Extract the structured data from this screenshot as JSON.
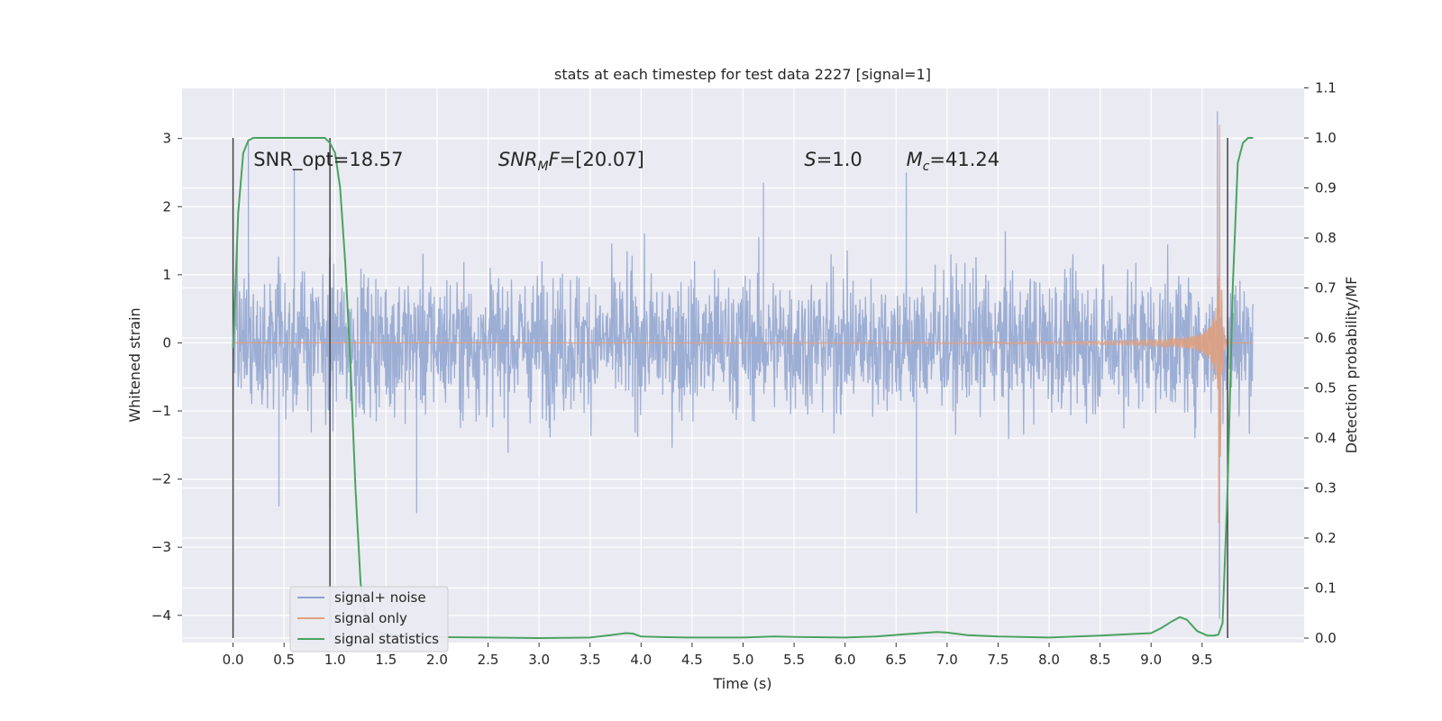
{
  "chart_data": {
    "type": "line",
    "title": "stats at each timestep for test data 2227 [signal=1]",
    "xlabel": "Time (s)",
    "ylabel": "Whitened strain",
    "y2label": "Detection probability/MF",
    "xlim": [
      -0.5,
      10.5
    ],
    "ylim": [
      -4.4,
      3.75
    ],
    "y2lim": [
      -0.0,
      1.11
    ],
    "grid": true,
    "x_ticks": [
      0.0,
      0.5,
      1.0,
      1.5,
      2.0,
      2.5,
      3.0,
      3.5,
      4.0,
      4.5,
      5.0,
      5.5,
      6.0,
      6.5,
      7.0,
      7.5,
      8.0,
      8.5,
      9.0,
      9.5
    ],
    "x_tick_labels": [
      "0.0",
      "0.5",
      "1.0",
      "1.5",
      "2.0",
      "2.5",
      "3.0",
      "3.5",
      "4.0",
      "4.5",
      "5.0",
      "5.5",
      "6.0",
      "6.5",
      "7.0",
      "7.5",
      "8.0",
      "8.5",
      "9.0",
      "9.5"
    ],
    "y_ticks": [
      3,
      2,
      1,
      0,
      -1,
      -2,
      -3,
      -4
    ],
    "y_tick_labels": [
      "3",
      "2",
      "1",
      "0",
      "−1",
      "−2",
      "−3",
      "−4"
    ],
    "y2_ticks": [
      1.1,
      1.0,
      0.9,
      0.8,
      0.7,
      0.6,
      0.5,
      0.4,
      0.3,
      0.2,
      0.1,
      0.0
    ],
    "y2_tick_labels": [
      "1.1",
      "1.0",
      "0.9",
      "0.8",
      "0.7",
      "0.6",
      "0.5",
      "0.4",
      "0.3",
      "0.2",
      "0.1",
      "0.0"
    ],
    "legend_position": "lower-left",
    "series": [
      {
        "name": "signal+ noise",
        "color": "#8fa3cf",
        "axis": "left",
        "x_range": [
          0.0,
          10.0
        ],
        "typical_band": [
          -1.3,
          1.3
        ],
        "peaks": [
          [
            0.15,
            2.95
          ],
          [
            0.45,
            -2.4
          ],
          [
            0.6,
            2.55
          ],
          [
            0.95,
            -2.45
          ],
          [
            1.8,
            -2.5
          ],
          [
            5.2,
            2.35
          ],
          [
            6.6,
            2.5
          ],
          [
            6.7,
            -2.5
          ],
          [
            9.65,
            3.4
          ],
          [
            9.67,
            -4.05
          ]
        ]
      },
      {
        "name": "signal only",
        "color": "#e0a080",
        "axis": "left",
        "x_range": [
          0.0,
          10.0
        ],
        "merger_time": 9.67,
        "peak_amplitude": 3.2
      },
      {
        "name": "signal statistics",
        "color": "#4aa360",
        "axis": "right",
        "x": [
          0.0,
          0.05,
          0.1,
          0.15,
          0.2,
          0.3,
          0.5,
          0.7,
          0.8,
          0.9,
          0.95,
          1.0,
          1.05,
          1.1,
          1.15,
          1.2,
          1.25,
          1.3,
          1.4,
          1.5,
          1.7,
          2.0,
          2.5,
          3.0,
          3.5,
          3.7,
          3.85,
          3.92,
          4.0,
          4.2,
          4.5,
          5.0,
          5.3,
          5.6,
          6.0,
          6.3,
          6.6,
          6.9,
          7.0,
          7.2,
          7.5,
          8.0,
          8.5,
          9.0,
          9.1,
          9.2,
          9.28,
          9.35,
          9.45,
          9.55,
          9.62,
          9.66,
          9.7,
          9.75,
          9.8,
          9.85,
          9.9,
          9.95,
          10.0
        ],
        "y": [
          0.58,
          0.85,
          0.97,
          0.995,
          1.0,
          1.0,
          1.0,
          1.0,
          1.0,
          1.0,
          0.99,
          0.97,
          0.9,
          0.75,
          0.55,
          0.3,
          0.11,
          0.04,
          0.015,
          0.008,
          0.004,
          0.002,
          0.001,
          0.0,
          0.001,
          0.006,
          0.01,
          0.009,
          0.003,
          0.002,
          0.001,
          0.001,
          0.003,
          0.002,
          0.001,
          0.003,
          0.008,
          0.012,
          0.011,
          0.006,
          0.003,
          0.001,
          0.005,
          0.01,
          0.02,
          0.033,
          0.042,
          0.037,
          0.014,
          0.005,
          0.005,
          0.007,
          0.03,
          0.3,
          0.7,
          0.95,
          0.99,
          1.0,
          1.0
        ]
      }
    ],
    "annotations": [
      {
        "text": "SNR_opt=18.57",
        "x": 0.2,
        "y": 2.6
      },
      {
        "html": "<tspan font-style=\"italic\">SNR</tspan><tspan font-style=\"italic\" font-size=\"14\" dy=\"5\">M</tspan><tspan font-style=\"italic\" dy=\"-5\">F</tspan><tspan>=[20.07]</tspan>",
        "x": 2.6,
        "y": 2.6
      },
      {
        "html": "<tspan font-style=\"italic\">S</tspan><tspan>=1.0</tspan>",
        "x": 5.6,
        "y": 2.6
      },
      {
        "html": "<tspan font-style=\"italic\">M</tspan><tspan font-style=\"italic\" font-size=\"14\" dy=\"5\">c</tspan><tspan dy=\"-5\">=41.24</tspan>",
        "x": 6.6,
        "y": 2.6
      }
    ],
    "vertical_markers": [
      0.0,
      0.95,
      9.75
    ]
  }
}
